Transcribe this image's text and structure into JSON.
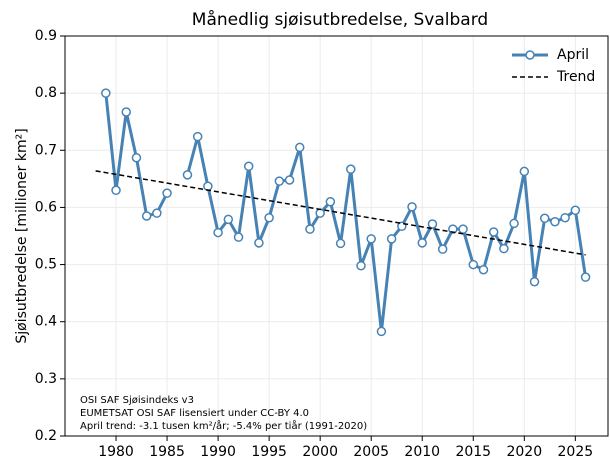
{
  "chart_data": {
    "type": "line",
    "title": "Månedlig sjøisutbredelse, Svalbard",
    "y_label": "Sjøisutbredelse [millioner km²]",
    "x": [
      1979,
      1980,
      1981,
      1982,
      1983,
      1984,
      1985,
      1986,
      1987,
      1988,
      1989,
      1990,
      1991,
      1992,
      1993,
      1994,
      1995,
      1996,
      1997,
      1998,
      1999,
      2000,
      2001,
      2002,
      2003,
      2004,
      2005,
      2006,
      2007,
      2008,
      2009,
      2010,
      2011,
      2012,
      2013,
      2014,
      2015,
      2016,
      2017,
      2018,
      2019,
      2020,
      2021,
      2022,
      2023,
      2024,
      2025,
      2026
    ],
    "series": [
      {
        "name": "April",
        "color": "#4682b4",
        "values": [
          0.8,
          0.63,
          0.767,
          0.687,
          0.585,
          0.59,
          0.625,
          null,
          0.657,
          0.724,
          0.637,
          0.556,
          0.579,
          0.548,
          0.672,
          0.538,
          0.582,
          0.646,
          0.648,
          0.705,
          0.562,
          0.59,
          0.61,
          0.537,
          0.667,
          0.498,
          0.545,
          0.383,
          0.545,
          0.567,
          0.601,
          0.538,
          0.571,
          0.527,
          0.562,
          0.562,
          0.5,
          0.491,
          0.557,
          0.528,
          0.572,
          0.663,
          0.47,
          0.581,
          0.575,
          0.582,
          0.595,
          0.478
        ]
      },
      {
        "name": "Trend",
        "color": "#000000",
        "x": [
          1978,
          2026
        ],
        "values": [
          0.664,
          0.517
        ]
      }
    ],
    "xlim": [
      1975,
      2028.2
    ],
    "xticks": [
      1980,
      1985,
      1990,
      1995,
      2000,
      2005,
      2010,
      2015,
      2020,
      2025
    ],
    "ylim": [
      0.2,
      0.9
    ],
    "yticks": [
      0.2,
      0.3,
      0.4,
      0.5,
      0.6,
      0.7,
      0.8,
      0.9
    ],
    "grid": true,
    "annotations": [
      "OSI SAF Sjøisindeks v3",
      "EUMETSAT OSI SAF lisensiert under CC-BY 4.0",
      "April trend: -3.1 tusen km²/år; -5.4% per tiår (1991-2020)"
    ]
  }
}
